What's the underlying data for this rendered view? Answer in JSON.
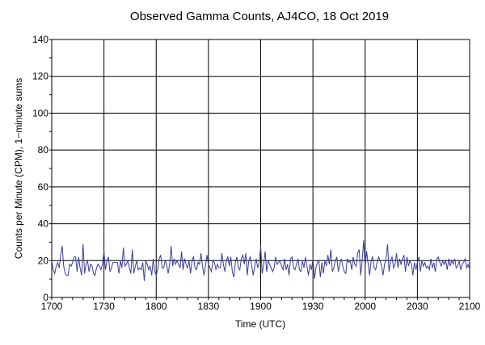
{
  "chart_data": {
    "type": "line",
    "title": "Observed Gamma Counts, AJ4CO, 18 Oct 2019",
    "xlabel": "Time (UTC)",
    "ylabel": "Counts per Minute (CPM), 1−minute sums",
    "ylim": [
      0,
      140
    ],
    "yticks": [
      0,
      20,
      40,
      60,
      80,
      100,
      120,
      140
    ],
    "xlim": [
      "1700",
      "2100"
    ],
    "xticks": [
      "1700",
      "1730",
      "1800",
      "1830",
      "1900",
      "1930",
      "2000",
      "2030",
      "2100"
    ],
    "grid": true,
    "line_color": "#3c3c96",
    "series": [
      {
        "values": [
          20,
          15,
          13,
          17,
          19,
          16,
          23,
          28,
          17,
          13,
          12,
          12,
          18,
          17,
          19,
          22,
          22,
          14,
          22,
          16,
          12,
          29,
          13,
          18,
          20,
          14,
          18,
          17,
          13,
          12,
          16,
          18,
          17,
          15,
          18,
          25,
          15,
          20,
          22,
          14,
          16,
          19,
          19,
          19,
          19,
          13,
          20,
          16,
          27,
          17,
          18,
          20,
          16,
          13,
          26,
          13,
          17,
          20,
          15,
          16,
          15,
          19,
          9,
          20,
          18,
          15,
          17,
          12,
          21,
          14,
          12,
          15,
          21,
          23,
          16,
          16,
          20,
          18,
          13,
          18,
          28,
          17,
          21,
          18,
          20,
          18,
          16,
          25,
          15,
          21,
          18,
          16,
          20,
          13,
          20,
          22,
          16,
          15,
          19,
          18,
          24,
          17,
          12,
          17,
          23,
          18,
          16,
          14,
          20,
          19,
          15,
          18,
          16,
          16,
          24,
          18,
          14,
          20,
          22,
          17,
          22,
          14,
          11,
          19,
          22,
          16,
          15,
          21,
          23,
          18,
          24,
          12,
          20,
          22,
          17,
          12,
          17,
          21,
          16,
          19,
          28,
          13,
          18,
          25,
          14,
          20,
          18,
          16,
          14,
          16,
          22,
          18,
          19,
          20,
          17,
          15,
          21,
          15,
          18,
          12,
          21,
          22,
          16,
          15,
          18,
          21,
          15,
          14,
          20,
          16,
          22,
          17,
          12,
          18,
          15,
          21,
          10,
          16,
          19,
          20,
          11,
          19,
          13,
          20,
          17,
          23,
          18,
          26,
          14,
          16,
          20,
          22,
          14,
          18,
          21,
          17,
          14,
          13,
          21,
          19,
          20,
          15,
          22,
          18,
          17,
          24,
          26,
          12,
          20,
          31,
          17,
          25,
          18,
          12,
          20,
          22,
          16,
          15,
          19,
          22,
          20,
          17,
          12,
          18,
          21,
          29,
          14,
          20,
          22,
          16,
          18,
          24,
          16,
          21,
          18,
          21,
          23,
          14,
          22,
          17,
          20,
          18,
          12,
          19,
          15,
          19,
          22,
          14,
          20,
          17,
          19,
          16,
          17,
          15,
          21,
          16,
          19,
          14,
          21,
          22,
          19,
          17,
          20,
          18,
          20,
          15,
          21,
          17,
          20,
          18,
          21,
          16,
          17,
          20,
          15,
          18,
          19,
          21,
          16,
          18,
          15
        ]
      }
    ]
  }
}
